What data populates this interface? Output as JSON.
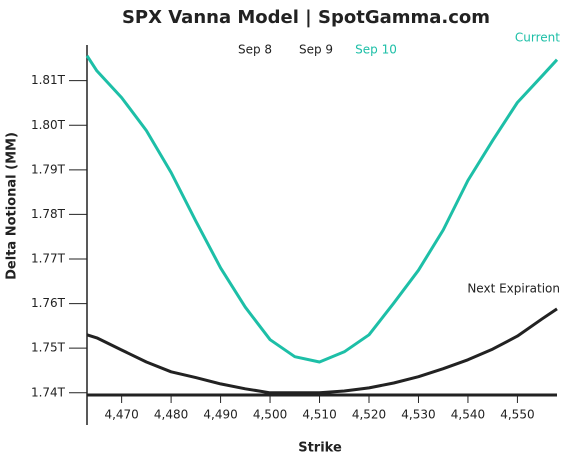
{
  "chart_data": {
    "type": "line",
    "title": "SPX Vanna Model | SpotGamma.com",
    "legend": [
      {
        "label": "Sep 8",
        "color": "#222222"
      },
      {
        "label": "Sep 9",
        "color": "#222222"
      },
      {
        "label": "Sep 10",
        "color": "#1dbfa7"
      }
    ],
    "x_label": "Strike",
    "y_label": "Delta Notional (MM)",
    "x": [
      4463,
      4465,
      4470,
      4475,
      4480,
      4485,
      4490,
      4495,
      4500,
      4505,
      4510,
      4515,
      4520,
      4525,
      4530,
      4535,
      4540,
      4545,
      4550,
      4555,
      4558
    ],
    "series": [
      {
        "name": "Current",
        "color": "#1dbfa7",
        "values": [
          1815600000000.0,
          1812200000000.0,
          1806200000000.0,
          1798800000000.0,
          1789400000000.0,
          1778500000000.0,
          1768000000000.0,
          1759200000000.0,
          1751900000000.0,
          1748100000000.0,
          1746900000000.0,
          1749200000000.0,
          1753000000000.0,
          1760100000000.0,
          1767500000000.0,
          1776500000000.0,
          1787600000000.0,
          1796600000000.0,
          1805100000000.0,
          1811100000000.0,
          1814700000000.0
        ]
      },
      {
        "name": "Next Expiration",
        "color": "#222222",
        "values": [
          1753000000000.0,
          1752300000000.0,
          1749600000000.0,
          1746900000000.0,
          1744700000000.0,
          1743400000000.0,
          1742000000000.0,
          1740900000000.0,
          1740000000000.0,
          1740000000000.0,
          1740000000000.0,
          1740400000000.0,
          1741100000000.0,
          1742200000000.0,
          1743600000000.0,
          1745400000000.0,
          1747400000000.0,
          1749800000000.0,
          1752700000000.0,
          1756600000000.0,
          1758800000000.0
        ]
      }
    ],
    "xlim": [
      4463,
      4558
    ],
    "ylim": [
      1739500000000.0,
      1818000000000.0
    ],
    "xticks": [
      {
        "value": 4470,
        "label": "4,470"
      },
      {
        "value": 4480,
        "label": "4,480"
      },
      {
        "value": 4490,
        "label": "4,490"
      },
      {
        "value": 4500,
        "label": "4,500"
      },
      {
        "value": 4510,
        "label": "4,510"
      },
      {
        "value": 4520,
        "label": "4,520"
      },
      {
        "value": 4530,
        "label": "4,530"
      },
      {
        "value": 4540,
        "label": "4,540"
      },
      {
        "value": 4550,
        "label": "4,550"
      }
    ],
    "yticks": [
      {
        "value": 1740000000000.0,
        "label": "1.74T"
      },
      {
        "value": 1750000000000.0,
        "label": "1.75T"
      },
      {
        "value": 1760000000000.0,
        "label": "1.76T"
      },
      {
        "value": 1770000000000.0,
        "label": "1.77T"
      },
      {
        "value": 1780000000000.0,
        "label": "1.78T"
      },
      {
        "value": 1790000000000.0,
        "label": "1.79T"
      },
      {
        "value": 1800000000000.0,
        "label": "1.80T"
      },
      {
        "value": 1810000000000.0,
        "label": "1.81T"
      }
    ],
    "grid": false
  }
}
